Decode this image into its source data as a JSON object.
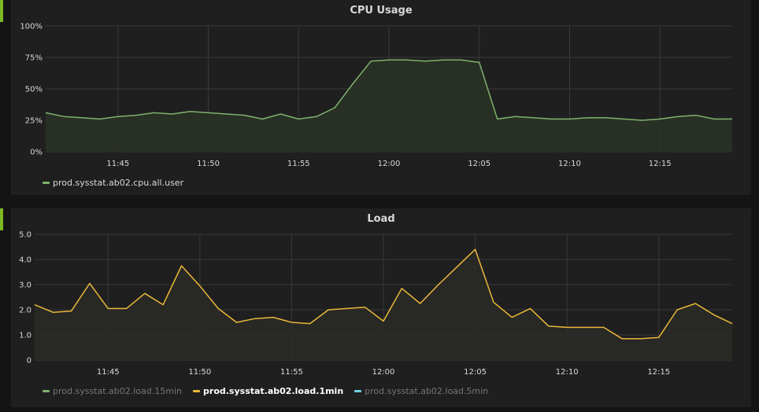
{
  "colors": {
    "grid": "#3a3a3a",
    "cpu_line": "#7eb26d",
    "cpu_fill": "#2a3326",
    "load_line": "#eab839",
    "load_fill": "#2a2a26",
    "load15": "#7eb26d",
    "load5": "#6ed0e0"
  },
  "cpu_panel": {
    "title": "CPU Usage",
    "legend": [
      {
        "label": "prod.sysstat.ab02.cpu.all.user",
        "color": "#7eb26d",
        "state": "normal"
      }
    ]
  },
  "load_panel": {
    "title": "Load",
    "legend": [
      {
        "label": "prod.sysstat.ab02.load.15min",
        "color": "#7eb26d",
        "state": "hidden"
      },
      {
        "label": "prod.sysstat.ab02.load.1min",
        "color": "#eab839",
        "state": "active"
      },
      {
        "label": "prod.sysstat.ab02.load.5min",
        "color": "#6ed0e0",
        "state": "hidden"
      }
    ]
  },
  "chart_data": [
    {
      "type": "area",
      "title": "CPU Usage",
      "xlabel": "",
      "ylabel": "",
      "x_range": [
        "11:41",
        "12:19"
      ],
      "ylim": [
        0,
        100
      ],
      "yticks": [
        0,
        25,
        50,
        75,
        100
      ],
      "ytick_labels": [
        "0%",
        "25%",
        "50%",
        "75%",
        "100%"
      ],
      "xticks": [
        "11:45",
        "11:50",
        "11:55",
        "12:00",
        "12:05",
        "12:10",
        "12:15"
      ],
      "grid": true,
      "legend_position": "bottom-left",
      "series": [
        {
          "name": "prod.sysstat.ab02.cpu.all.user",
          "x": [
            "11:41",
            "11:42",
            "11:43",
            "11:44",
            "11:45",
            "11:46",
            "11:47",
            "11:48",
            "11:49",
            "11:50",
            "11:51",
            "11:52",
            "11:53",
            "11:54",
            "11:55",
            "11:56",
            "11:57",
            "11:58",
            "11:59",
            "12:00",
            "12:01",
            "12:02",
            "12:03",
            "12:04",
            "12:05",
            "12:06",
            "12:07",
            "12:08",
            "12:09",
            "12:10",
            "12:11",
            "12:12",
            "12:13",
            "12:14",
            "12:15",
            "12:16",
            "12:17",
            "12:18",
            "12:19"
          ],
          "values": [
            31,
            28,
            27,
            26,
            28,
            29,
            31,
            30,
            32,
            31,
            30,
            29,
            26,
            30,
            26,
            28,
            35,
            54,
            72,
            73,
            73,
            72,
            73,
            73,
            71,
            26,
            28,
            27,
            26,
            26,
            27,
            27,
            26,
            25,
            26,
            28,
            29,
            26,
            26
          ]
        }
      ]
    },
    {
      "type": "line",
      "title": "Load",
      "xlabel": "",
      "ylabel": "",
      "x_range": [
        "11:41",
        "12:19"
      ],
      "ylim": [
        0,
        5
      ],
      "yticks": [
        0,
        1,
        2,
        3,
        4,
        5
      ],
      "ytick_labels": [
        "0",
        "1.0",
        "2.0",
        "3.0",
        "4.0",
        "5.0"
      ],
      "xticks": [
        "11:45",
        "11:50",
        "11:55",
        "12:00",
        "12:05",
        "12:10",
        "12:15"
      ],
      "grid": true,
      "legend_position": "bottom-left",
      "series": [
        {
          "name": "prod.sysstat.ab02.load.1min",
          "x": [
            "11:41",
            "11:42",
            "11:43",
            "11:44",
            "11:45",
            "11:46",
            "11:47",
            "11:48",
            "11:49",
            "11:50",
            "11:51",
            "11:52",
            "11:53",
            "11:54",
            "11:55",
            "11:56",
            "11:57",
            "11:58",
            "11:59",
            "12:00",
            "12:01",
            "12:02",
            "12:03",
            "12:04",
            "12:05",
            "12:06",
            "12:07",
            "12:08",
            "12:09",
            "12:10",
            "12:11",
            "12:12",
            "12:13",
            "12:14",
            "12:15",
            "12:16",
            "12:17",
            "12:18",
            "12:19"
          ],
          "values": [
            2.2,
            1.9,
            1.95,
            3.05,
            2.05,
            2.05,
            2.65,
            2.2,
            3.75,
            2.95,
            2.05,
            1.5,
            1.65,
            1.7,
            1.5,
            1.45,
            2.0,
            2.05,
            2.1,
            1.55,
            2.85,
            2.25,
            3.0,
            3.7,
            4.4,
            2.3,
            1.7,
            2.05,
            1.35,
            1.3,
            1.3,
            1.3,
            0.85,
            0.85,
            0.9,
            2.0,
            2.25,
            1.8,
            1.45
          ]
        }
      ]
    }
  ]
}
